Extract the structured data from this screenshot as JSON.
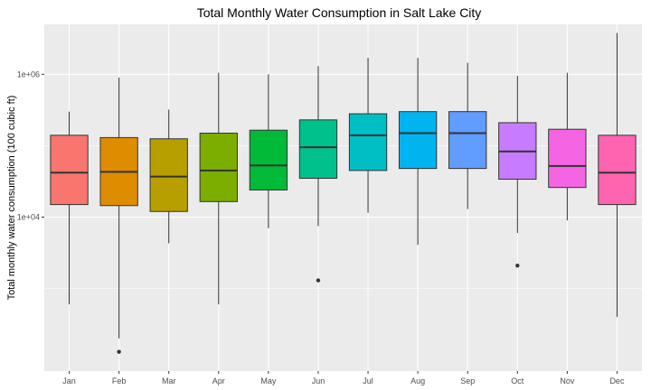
{
  "chart_data": {
    "type": "boxplot",
    "title": "Total Monthly Water Consumption in Salt Lake City",
    "xlabel": "",
    "ylabel": "Total monthly water consumption (100 cubic ft)",
    "y_scale": "log10",
    "ylim": [
      70,
      5000000
    ],
    "y_ticks": [
      {
        "value": 10000,
        "label": "1e+04"
      },
      {
        "value": 1000000,
        "label": "1e+06"
      }
    ],
    "y_minor_ticks": [
      1000,
      100000
    ],
    "grid": true,
    "legend": "none",
    "panel_background": "#ebebeb",
    "grid_color": "#ffffff",
    "categories": [
      "Jan",
      "Feb",
      "Mar",
      "Apr",
      "May",
      "Jun",
      "Jul",
      "Aug",
      "Sep",
      "Oct",
      "Nov",
      "Dec"
    ],
    "boxes": [
      {
        "label": "Jan",
        "color": "#F8766D",
        "min": 600,
        "q1": 15000,
        "median": 42000,
        "q3": 140000,
        "max": 300000,
        "outliers": []
      },
      {
        "label": "Feb",
        "color": "#DE8C00",
        "min": 200,
        "q1": 14500,
        "median": 43000,
        "q3": 130000,
        "max": 900000,
        "outliers": [
          130
        ]
      },
      {
        "label": "Mar",
        "color": "#B79F00",
        "min": 4300,
        "q1": 12000,
        "median": 37000,
        "q3": 125000,
        "max": 320000,
        "outliers": []
      },
      {
        "label": "Apr",
        "color": "#7CAE00",
        "min": 600,
        "q1": 16500,
        "median": 45000,
        "q3": 150000,
        "max": 1050000,
        "outliers": []
      },
      {
        "label": "May",
        "color": "#00BA38",
        "min": 7000,
        "q1": 24000,
        "median": 53000,
        "q3": 165000,
        "max": 1000000,
        "outliers": []
      },
      {
        "label": "Jun",
        "color": "#00C08B",
        "min": 7500,
        "q1": 35000,
        "median": 95000,
        "q3": 230000,
        "max": 1300000,
        "outliers": [
          1300
        ]
      },
      {
        "label": "Jul",
        "color": "#00BFC4",
        "min": 11500,
        "q1": 45000,
        "median": 140000,
        "q3": 280000,
        "max": 1700000,
        "outliers": []
      },
      {
        "label": "Aug",
        "color": "#00B4F0",
        "min": 4100,
        "q1": 48000,
        "median": 150000,
        "q3": 300000,
        "max": 1700000,
        "outliers": []
      },
      {
        "label": "Sep",
        "color": "#619CFF",
        "min": 13000,
        "q1": 48000,
        "median": 150000,
        "q3": 300000,
        "max": 1450000,
        "outliers": []
      },
      {
        "label": "Oct",
        "color": "#C77CFF",
        "min": 6000,
        "q1": 34000,
        "median": 83000,
        "q3": 210000,
        "max": 950000,
        "outliers": [
          2100
        ]
      },
      {
        "label": "Nov",
        "color": "#F564E3",
        "min": 9000,
        "q1": 26000,
        "median": 52000,
        "q3": 170000,
        "max": 1050000,
        "outliers": []
      },
      {
        "label": "Dec",
        "color": "#FF64B0",
        "min": 400,
        "q1": 15000,
        "median": 42000,
        "q3": 140000,
        "max": 3800000,
        "outliers": []
      }
    ]
  }
}
